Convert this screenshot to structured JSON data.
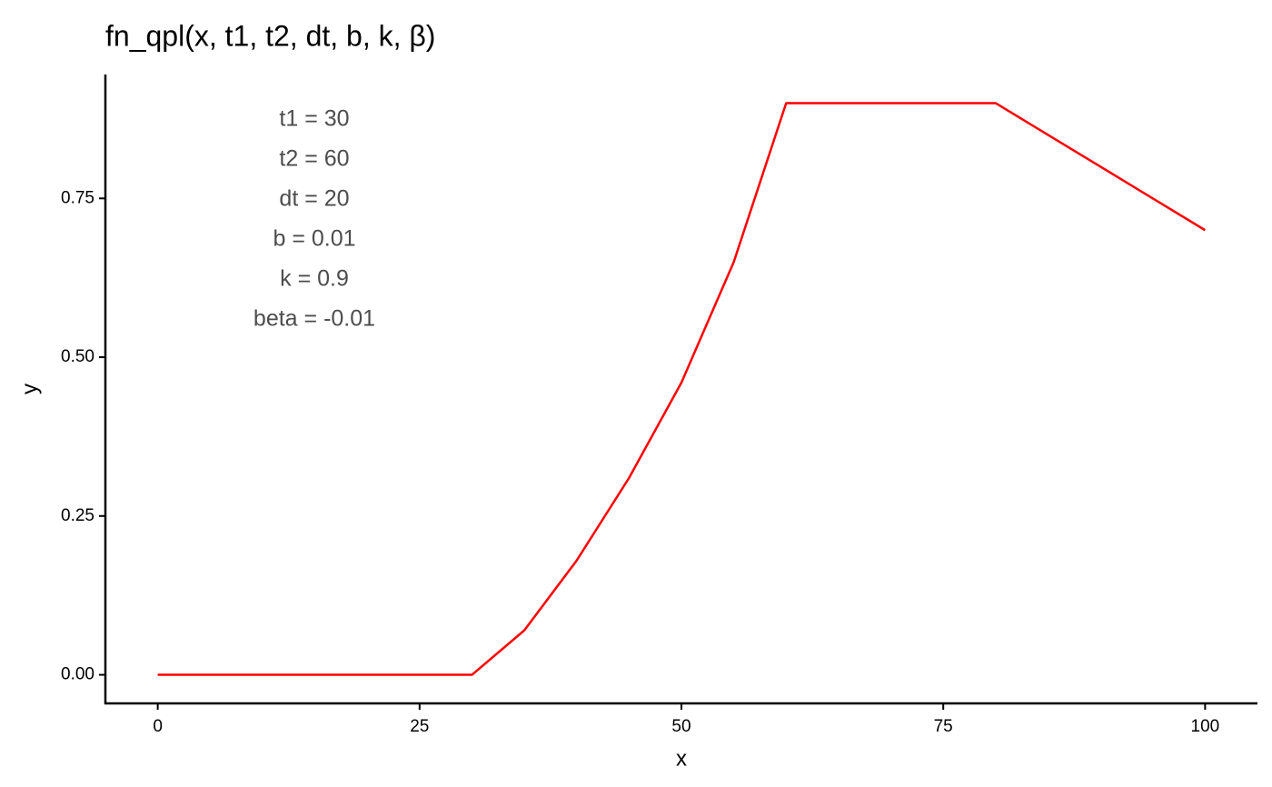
{
  "chart_data": {
    "type": "line",
    "title": "fn_qpl(x, t1, t2, dt, b, k, β)",
    "x_label": "x",
    "y_label": "y",
    "annotations": [
      "t1 = 30",
      "t2 = 60",
      "dt = 20",
      "b = 0.01",
      "k = 0.9",
      "beta = -0.01"
    ],
    "x": [
      0,
      5,
      10,
      15,
      20,
      25,
      30,
      35,
      40,
      45,
      50,
      55,
      60,
      65,
      70,
      75,
      80,
      85,
      90,
      95,
      100
    ],
    "series": [
      {
        "color": "#ff0000",
        "values": [
          0,
          0,
          0,
          0,
          0,
          0,
          0,
          0.07,
          0.18,
          0.31,
          0.46,
          0.65,
          0.9,
          0.9,
          0.9,
          0.9,
          0.9,
          0.85,
          0.8,
          0.75,
          0.7
        ]
      }
    ],
    "xlim": [
      -5,
      105
    ],
    "xticks": [
      0,
      25,
      50,
      75,
      100
    ],
    "ylim": [
      -0.045,
      0.945
    ],
    "yticks": [
      {
        "value": 0,
        "label": "0.00"
      },
      {
        "value": 0.25,
        "label": "0.25"
      },
      {
        "value": 0.5,
        "label": "0.50"
      },
      {
        "value": 0.75,
        "label": "0.75"
      }
    ],
    "grid": false
  }
}
